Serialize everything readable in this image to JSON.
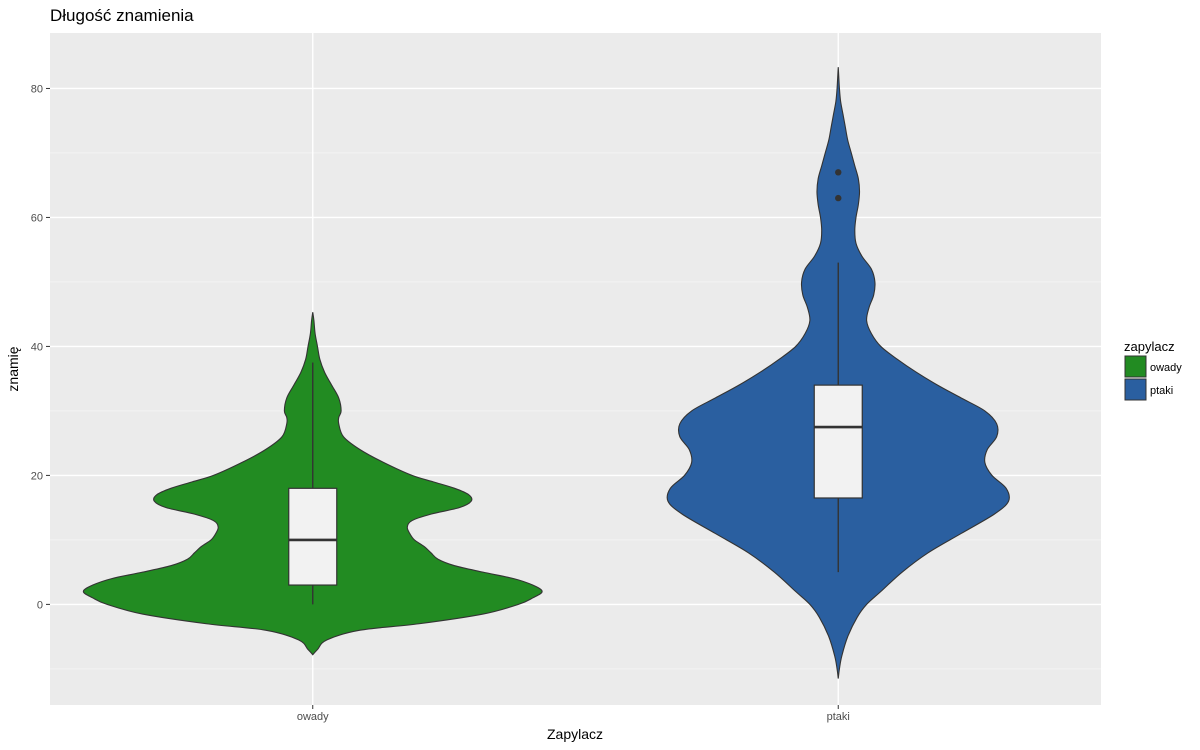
{
  "chart_data": {
    "type": "violin",
    "title": "Długość znamienia",
    "xlabel": "Zapylacz",
    "ylabel": "znamię",
    "categories": [
      "owady",
      "ptaki"
    ],
    "ylim": [
      -15.6,
      88.6
    ],
    "y_ticks": [
      0,
      20,
      40,
      60,
      80
    ],
    "grid": true,
    "legend": {
      "title": "zapylacz",
      "position": "right",
      "entries": [
        {
          "label": "owady",
          "color": "#228B22"
        },
        {
          "label": "ptaki",
          "color": "#2A5FA0"
        }
      ]
    },
    "series": [
      {
        "name": "owady",
        "color": "#228B22",
        "density": [
          [
            -7.8,
            0
          ],
          [
            -7,
            0.02
          ],
          [
            -5.5,
            0.06
          ],
          [
            -4,
            0.2
          ],
          [
            -3,
            0.45
          ],
          [
            -1.5,
            0.72
          ],
          [
            0,
            0.87
          ],
          [
            1,
            0.93
          ],
          [
            2,
            0.97
          ],
          [
            3,
            0.93
          ],
          [
            4,
            0.85
          ],
          [
            5,
            0.72
          ],
          [
            6,
            0.6
          ],
          [
            7,
            0.53
          ],
          [
            8,
            0.5
          ],
          [
            9,
            0.47
          ],
          [
            10,
            0.43
          ],
          [
            11,
            0.41
          ],
          [
            12,
            0.4
          ],
          [
            13,
            0.42
          ],
          [
            14,
            0.5
          ],
          [
            15,
            0.62
          ],
          [
            16,
            0.67
          ],
          [
            17,
            0.66
          ],
          [
            18,
            0.6
          ],
          [
            19,
            0.51
          ],
          [
            20,
            0.42
          ],
          [
            22,
            0.3
          ],
          [
            24,
            0.2
          ],
          [
            26,
            0.13
          ],
          [
            28,
            0.11
          ],
          [
            29,
            0.11
          ],
          [
            30,
            0.12
          ],
          [
            32,
            0.11
          ],
          [
            34,
            0.08
          ],
          [
            36,
            0.05
          ],
          [
            38,
            0.03
          ],
          [
            40,
            0.02
          ],
          [
            42,
            0.01
          ],
          [
            44,
            0.005
          ],
          [
            45.3,
            0
          ]
        ],
        "box": {
          "q1": 3,
          "median": 10,
          "q3": 18,
          "whisker_low": 0,
          "whisker_high": 37.5
        },
        "outliers": []
      },
      {
        "name": "ptaki",
        "color": "#2A5FA0",
        "density": [
          [
            -11.5,
            0
          ],
          [
            -10,
            0.005
          ],
          [
            -8,
            0.015
          ],
          [
            -5,
            0.04
          ],
          [
            -2,
            0.08
          ],
          [
            0,
            0.12
          ],
          [
            2,
            0.18
          ],
          [
            5,
            0.27
          ],
          [
            8,
            0.38
          ],
          [
            11,
            0.52
          ],
          [
            14,
            0.66
          ],
          [
            16,
            0.72
          ],
          [
            18,
            0.71
          ],
          [
            20,
            0.65
          ],
          [
            22,
            0.62
          ],
          [
            24,
            0.63
          ],
          [
            26,
            0.67
          ],
          [
            28,
            0.67
          ],
          [
            30,
            0.62
          ],
          [
            32,
            0.52
          ],
          [
            34,
            0.42
          ],
          [
            36,
            0.33
          ],
          [
            38,
            0.25
          ],
          [
            40,
            0.18
          ],
          [
            42,
            0.14
          ],
          [
            44,
            0.12
          ],
          [
            46,
            0.13
          ],
          [
            48,
            0.15
          ],
          [
            50,
            0.155
          ],
          [
            52,
            0.14
          ],
          [
            54,
            0.1
          ],
          [
            56,
            0.075
          ],
          [
            58,
            0.07
          ],
          [
            60,
            0.075
          ],
          [
            62,
            0.085
          ],
          [
            64,
            0.09
          ],
          [
            66,
            0.085
          ],
          [
            68,
            0.07
          ],
          [
            70,
            0.055
          ],
          [
            72,
            0.04
          ],
          [
            74,
            0.03
          ],
          [
            76,
            0.02
          ],
          [
            78,
            0.01
          ],
          [
            80,
            0.005
          ],
          [
            82,
            0.002
          ],
          [
            83.3,
            0
          ]
        ],
        "box": {
          "q1": 16.5,
          "median": 27.5,
          "q3": 34,
          "whisker_low": 5,
          "whisker_high": 53
        },
        "outliers": [
          63,
          67
        ]
      }
    ]
  }
}
